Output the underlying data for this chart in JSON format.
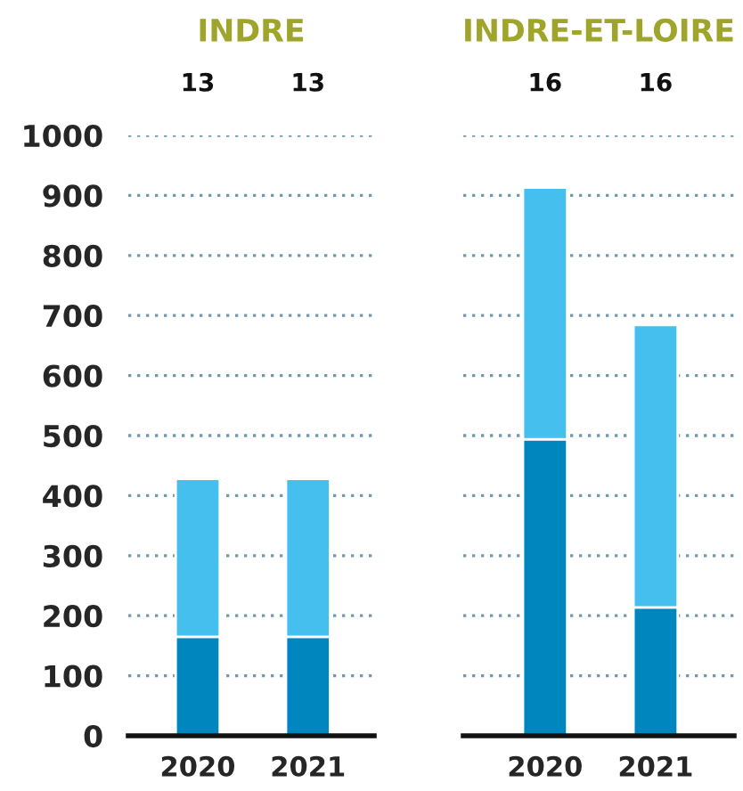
{
  "chart_data": [
    {
      "type": "bar",
      "title": "INDRE",
      "categories": [
        "2020",
        "2021"
      ],
      "stacked": true,
      "series": [
        {
          "color": "#0086bf",
          "values": [
            165,
            165
          ]
        },
        {
          "color": "#45bfee",
          "values": [
            263,
            263
          ]
        }
      ],
      "ylim": [
        0,
        1000
      ],
      "yticks": [
        0,
        100,
        200,
        300,
        400,
        500,
        600,
        700,
        800,
        900,
        1000
      ],
      "grid": "y",
      "annotations": [
        "13",
        "13"
      ]
    },
    {
      "type": "bar",
      "title": "INDRE-ET-LOIRE",
      "categories": [
        "2020",
        "2021"
      ],
      "stacked": true,
      "series": [
        {
          "color": "#0086bf",
          "values": [
            494,
            214
          ]
        },
        {
          "color": "#45bfee",
          "values": [
            419,
            470
          ]
        }
      ],
      "ylim": [
        0,
        1000
      ],
      "yticks": [
        0,
        100,
        200,
        300,
        400,
        500,
        600,
        700,
        800,
        900,
        1000
      ],
      "grid": "y",
      "tick_labels": "x",
      "annotations": [
        "16",
        "16"
      ]
    }
  ]
}
